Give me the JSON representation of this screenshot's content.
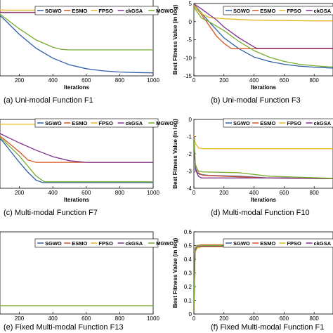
{
  "chart_data": [
    {
      "type": "line",
      "caption": "(a)  Uni-modal Function F1",
      "xlabel": "Iterations",
      "ylabel": "",
      "xlim": [
        0,
        1000
      ],
      "ylim": [
        -10,
        5
      ],
      "xticks": [
        200,
        400,
        600,
        800,
        1000
      ],
      "yticks": [],
      "legend": [
        "SGWO",
        "ESMO",
        "FPSO",
        "ckGSA",
        "MGWO"
      ],
      "legend_placement": "top",
      "series": [
        {
          "name": "SGWO",
          "color": "#2d5fa8",
          "x": [
            0,
            100,
            200,
            300,
            400,
            500,
            600,
            700,
            800,
            900,
            1000
          ],
          "y": [
            3,
            0.5,
            -2.5,
            -5,
            -6.8,
            -8,
            -8.7,
            -9.1,
            -9.3,
            -9.4,
            -9.45
          ]
        },
        {
          "name": "ESMO",
          "color": "#d9531e",
          "x": [
            0,
            30,
            60,
            100,
            1000
          ],
          "y": [
            3.3,
            1.8,
            1.6,
            1.5,
            1.5
          ]
        },
        {
          "name": "FPSO",
          "color": "#e5b81c",
          "x": [
            0,
            30,
            60,
            100,
            1000
          ],
          "y": [
            3.6,
            2.2,
            2.0,
            1.9,
            1.9
          ]
        },
        {
          "name": "ckGSA",
          "color": "#7e2f8e",
          "x": [
            0,
            30,
            60,
            100,
            1000
          ],
          "y": [
            3.1,
            1.7,
            1.55,
            1.45,
            1.45
          ]
        },
        {
          "name": "MGWO",
          "color": "#77ac30",
          "x": [
            0,
            100,
            200,
            300,
            400,
            450,
            500,
            1000
          ],
          "y": [
            3,
            0.8,
            -1.5,
            -3.5,
            -4.8,
            -5.2,
            -5.3,
            -5.3
          ]
        }
      ]
    },
    {
      "type": "line",
      "caption": "(b)  Uni-modal Function F3",
      "xlabel": "Iterations",
      "ylabel": "Best Fitness Value (in log)",
      "xlim": [
        0,
        1000
      ],
      "ylim": [
        -15,
        5
      ],
      "xticks": [
        0,
        200,
        400,
        600,
        800,
        1000
      ],
      "yticks": [
        -15,
        -10,
        -5,
        0,
        5
      ],
      "legend": [
        "SGWO",
        "ESMO",
        "FPSO",
        "ckGSA",
        "MGWO"
      ],
      "legend_placement": "top",
      "series": [
        {
          "name": "SGWO",
          "color": "#2d5fa8",
          "x": [
            0,
            100,
            200,
            300,
            400,
            500,
            600,
            700,
            800,
            900,
            1000
          ],
          "y": [
            4.8,
            0,
            -4.5,
            -7.5,
            -9.8,
            -11,
            -11.8,
            -12.3,
            -12.6,
            -12.8,
            -12.9
          ]
        },
        {
          "name": "ESMO",
          "color": "#d9531e",
          "x": [
            0,
            50,
            100,
            150,
            200,
            250,
            400,
            1000
          ],
          "y": [
            4.5,
            2,
            -1,
            -4,
            -6,
            -7.5,
            -7.5,
            -7.5
          ]
        },
        {
          "name": "FPSO",
          "color": "#e5b81c",
          "x": [
            0,
            50,
            100,
            200,
            400,
            600,
            800,
            1000
          ],
          "y": [
            4.6,
            2.2,
            1.2,
            0.8,
            0.4,
            0.3,
            0.2,
            0.2
          ]
        },
        {
          "name": "ckGSA",
          "color": "#7e2f8e",
          "x": [
            0,
            50,
            100,
            150,
            200,
            300,
            400,
            420,
            1000
          ],
          "y": [
            4.9,
            3.5,
            2,
            0.5,
            -1.5,
            -4.5,
            -7,
            -7.4,
            -7.4
          ]
        },
        {
          "name": "MGWO",
          "color": "#77ac30",
          "x": [
            0,
            50,
            100,
            200,
            300,
            400,
            500,
            600,
            700,
            800,
            900,
            1000
          ],
          "y": [
            4,
            1,
            0,
            -2.5,
            -5.5,
            -8,
            -9.8,
            -11,
            -11.8,
            -12.2,
            -12.5,
            -12.6
          ]
        }
      ]
    },
    {
      "type": "line",
      "caption": "(c)  Multi-modal Function F7",
      "xlabel": "Iterations",
      "ylabel": "",
      "xlim": [
        0,
        1000
      ],
      "ylim": [
        -7,
        1.5
      ],
      "xticks": [
        200,
        400,
        600,
        800,
        1000
      ],
      "yticks": [],
      "legend": [
        "SGWO",
        "ESMO",
        "FPSO",
        "ckGSA",
        "MGWO"
      ],
      "legend_placement": "top",
      "series": [
        {
          "name": "SGWO",
          "color": "#2d5fa8",
          "x": [
            0,
            50,
            100,
            150,
            200,
            250,
            300,
            340,
            1000
          ],
          "y": [
            0.5,
            -0.2,
            -1.2,
            -2.5,
            -3.8,
            -5,
            -6,
            -6.3,
            -6.3
          ]
        },
        {
          "name": "ESMO",
          "color": "#d9531e",
          "x": [
            0,
            100,
            200,
            250,
            300,
            1000
          ],
          "y": [
            0.5,
            -0.8,
            -2.5,
            -3.5,
            -3.8,
            -3.8
          ]
        },
        {
          "name": "FPSO",
          "color": "#e5b81c",
          "x": [
            0,
            1000
          ],
          "y": [
            0.9,
            0.9
          ]
        },
        {
          "name": "ckGSA",
          "color": "#7e2f8e",
          "x": [
            0,
            100,
            200,
            300,
            400,
            500,
            600,
            1000
          ],
          "y": [
            0.6,
            -0.4,
            -1.4,
            -2.3,
            -3.1,
            -3.6,
            -3.8,
            -3.8
          ]
        },
        {
          "name": "MGWO",
          "color": "#77ac30",
          "x": [
            0,
            100,
            200,
            300,
            350,
            1000
          ],
          "y": [
            0.5,
            -1,
            -3,
            -5.5,
            -6.2,
            -6.2
          ]
        }
      ]
    },
    {
      "type": "line",
      "caption": "(d)  Multi-modal Function F10",
      "xlabel": "Iterations",
      "ylabel": "Best Fitness Value (in log)",
      "xlim": [
        0,
        1000
      ],
      "ylim": [
        -4,
        0
      ],
      "xticks": [
        0,
        200,
        400,
        600,
        800,
        1000
      ],
      "yticks": [
        -4,
        -3,
        -2,
        -1,
        0
      ],
      "legend": [
        "SGWO",
        "ESMO",
        "FPSO",
        "ckGSA",
        "MGWO"
      ],
      "legend_placement": "top",
      "series": [
        {
          "name": "SGWO",
          "color": "#2d5fa8",
          "x": [
            0,
            10,
            20,
            40,
            100,
            300,
            500,
            1000
          ],
          "y": [
            -1.2,
            -2.8,
            -3.1,
            -3.2,
            -3.25,
            -3.3,
            -3.4,
            -3.45
          ]
        },
        {
          "name": "ESMO",
          "color": "#d9531e",
          "x": [
            0,
            10,
            30,
            60,
            200,
            500,
            1000
          ],
          "y": [
            -1.0,
            -2.6,
            -3.1,
            -3.25,
            -3.3,
            -3.4,
            -3.45
          ]
        },
        {
          "name": "FPSO",
          "color": "#e5b81c",
          "x": [
            0,
            10,
            30,
            60,
            1000
          ],
          "y": [
            -0.9,
            -1.4,
            -1.65,
            -1.7,
            -1.7
          ]
        },
        {
          "name": "ckGSA",
          "color": "#7e2f8e",
          "x": [
            0,
            10,
            30,
            50,
            300,
            600,
            1000
          ],
          "y": [
            -1.0,
            -2.9,
            -3.3,
            -3.4,
            -3.4,
            -3.4,
            -3.45
          ]
        },
        {
          "name": "MGWO",
          "color": "#77ac30",
          "x": [
            0,
            10,
            30,
            60,
            300,
            500,
            1000
          ],
          "y": [
            -1.1,
            -2.7,
            -3.0,
            -3.05,
            -3.1,
            -3.3,
            -3.45
          ]
        }
      ]
    },
    {
      "type": "line",
      "caption": "(e)  Fixed Multi-modal Function F13",
      "xlabel": "",
      "ylabel": "",
      "xlim": [
        0,
        1000
      ],
      "ylim": [
        0,
        1
      ],
      "xticks": [
        200,
        400,
        600,
        800,
        1000
      ],
      "yticks": [],
      "legend": [
        "SGWO",
        "ESMO",
        "FPSO",
        "ckGSA",
        "MGWO"
      ],
      "legend_placement": "top",
      "series": [
        {
          "name": "SGWO",
          "color": "#2d5fa8",
          "x": [
            0,
            1000
          ],
          "y": [
            0.1,
            0.1
          ]
        },
        {
          "name": "ESMO",
          "color": "#d9531e",
          "x": [
            0,
            1000
          ],
          "y": [
            0.1,
            0.1
          ]
        },
        {
          "name": "FPSO",
          "color": "#e5b81c",
          "x": [
            0,
            1000
          ],
          "y": [
            0.1,
            0.1
          ]
        },
        {
          "name": "ckGSA",
          "color": "#7e2f8e",
          "x": [
            0,
            1000
          ],
          "y": [
            0.1,
            0.1
          ]
        },
        {
          "name": "MGWO",
          "color": "#77ac30",
          "x": [
            0,
            1000
          ],
          "y": [
            0.1,
            0.1
          ]
        }
      ]
    },
    {
      "type": "line",
      "caption": "(f)  Fixed Multi-modal Function F1",
      "xlabel": "",
      "ylabel": "Best Fitness Value (in log)",
      "xlim": [
        0,
        1000
      ],
      "ylim": [
        0,
        0.6
      ],
      "xticks": [
        0,
        200,
        400,
        600,
        800,
        1000
      ],
      "yticks": [
        0,
        0.1,
        0.2,
        0.3,
        0.4,
        0.5,
        0.6
      ],
      "legend": [
        "SGWO",
        "ESMO",
        "FPSO",
        "ckGSA",
        "MGWO"
      ],
      "legend_placement": "top",
      "series": [
        {
          "name": "SGWO",
          "color": "#2d5fa8",
          "x": [
            0,
            8,
            20,
            50,
            1000
          ],
          "y": [
            0.02,
            0.47,
            0.5,
            0.5,
            0.5
          ]
        },
        {
          "name": "ESMO",
          "color": "#d9531e",
          "x": [
            0,
            8,
            20,
            50,
            1000
          ],
          "y": [
            0.02,
            0.48,
            0.5,
            0.505,
            0.505
          ]
        },
        {
          "name": "FPSO",
          "color": "#e5b81c",
          "x": [
            0,
            8,
            20,
            50,
            1000
          ],
          "y": [
            0.02,
            0.45,
            0.48,
            0.49,
            0.49
          ]
        },
        {
          "name": "ckGSA",
          "color": "#7e2f8e",
          "x": [
            0,
            8,
            20,
            50,
            1000
          ],
          "y": [
            0.02,
            0.46,
            0.49,
            0.495,
            0.495
          ]
        },
        {
          "name": "MGWO",
          "color": "#77ac30",
          "x": [
            0,
            8,
            20,
            50,
            1000
          ],
          "y": [
            0.02,
            0.47,
            0.5,
            0.5,
            0.5
          ]
        }
      ]
    }
  ]
}
